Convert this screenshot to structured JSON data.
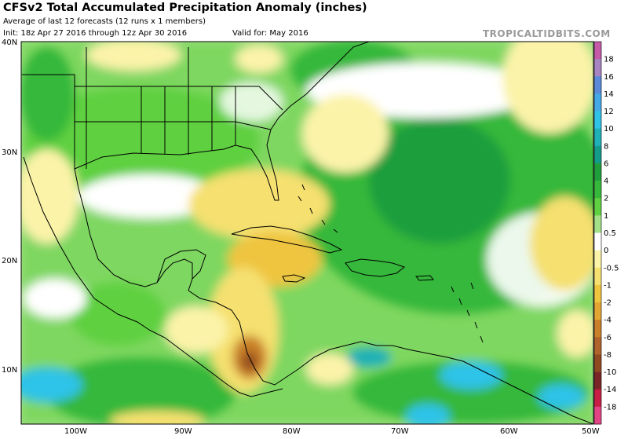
{
  "header": {
    "title": "CFSv2 Total Accumulated Precipitation Anomaly (inches)",
    "subtitle": "Average of last 12 forecasts (12 runs x 1 members)",
    "init": "Init: 18z Apr 27 2016 through 12z Apr 30 2016",
    "valid": "Valid for: May 2016",
    "brand": "TROPICALTIDBITS.COM"
  },
  "axes": {
    "lat_labels": [
      "40N",
      "30N",
      "20N",
      "10N"
    ],
    "lon_labels": [
      "100W",
      "90W",
      "80W",
      "70W",
      "60W",
      "50W"
    ]
  },
  "colorbar": {
    "labels": [
      "18",
      "16",
      "14",
      "12",
      "10",
      "8",
      "6",
      "4",
      "2",
      "1",
      "0.5",
      "0",
      "-0.5",
      "-1",
      "-2",
      "-4",
      "-6",
      "-8",
      "-10",
      "-14",
      "-18"
    ],
    "colors": [
      "#c45aa8",
      "#a784c2",
      "#5a8ad8",
      "#45a9e8",
      "#2fc3e8",
      "#1fb0b8",
      "#149c8a",
      "#1f9e3c",
      "#36b83a",
      "#5fd040",
      "#a4e088",
      "#ffffff",
      "#fbf3a8",
      "#f5e070",
      "#efc540",
      "#e3a632",
      "#c98028",
      "#b0632a",
      "#8f4a22",
      "#7a2626",
      "#c81e46",
      "#e34486"
    ]
  },
  "colors": {
    "coast": "#000000",
    "grid": "#222222"
  }
}
